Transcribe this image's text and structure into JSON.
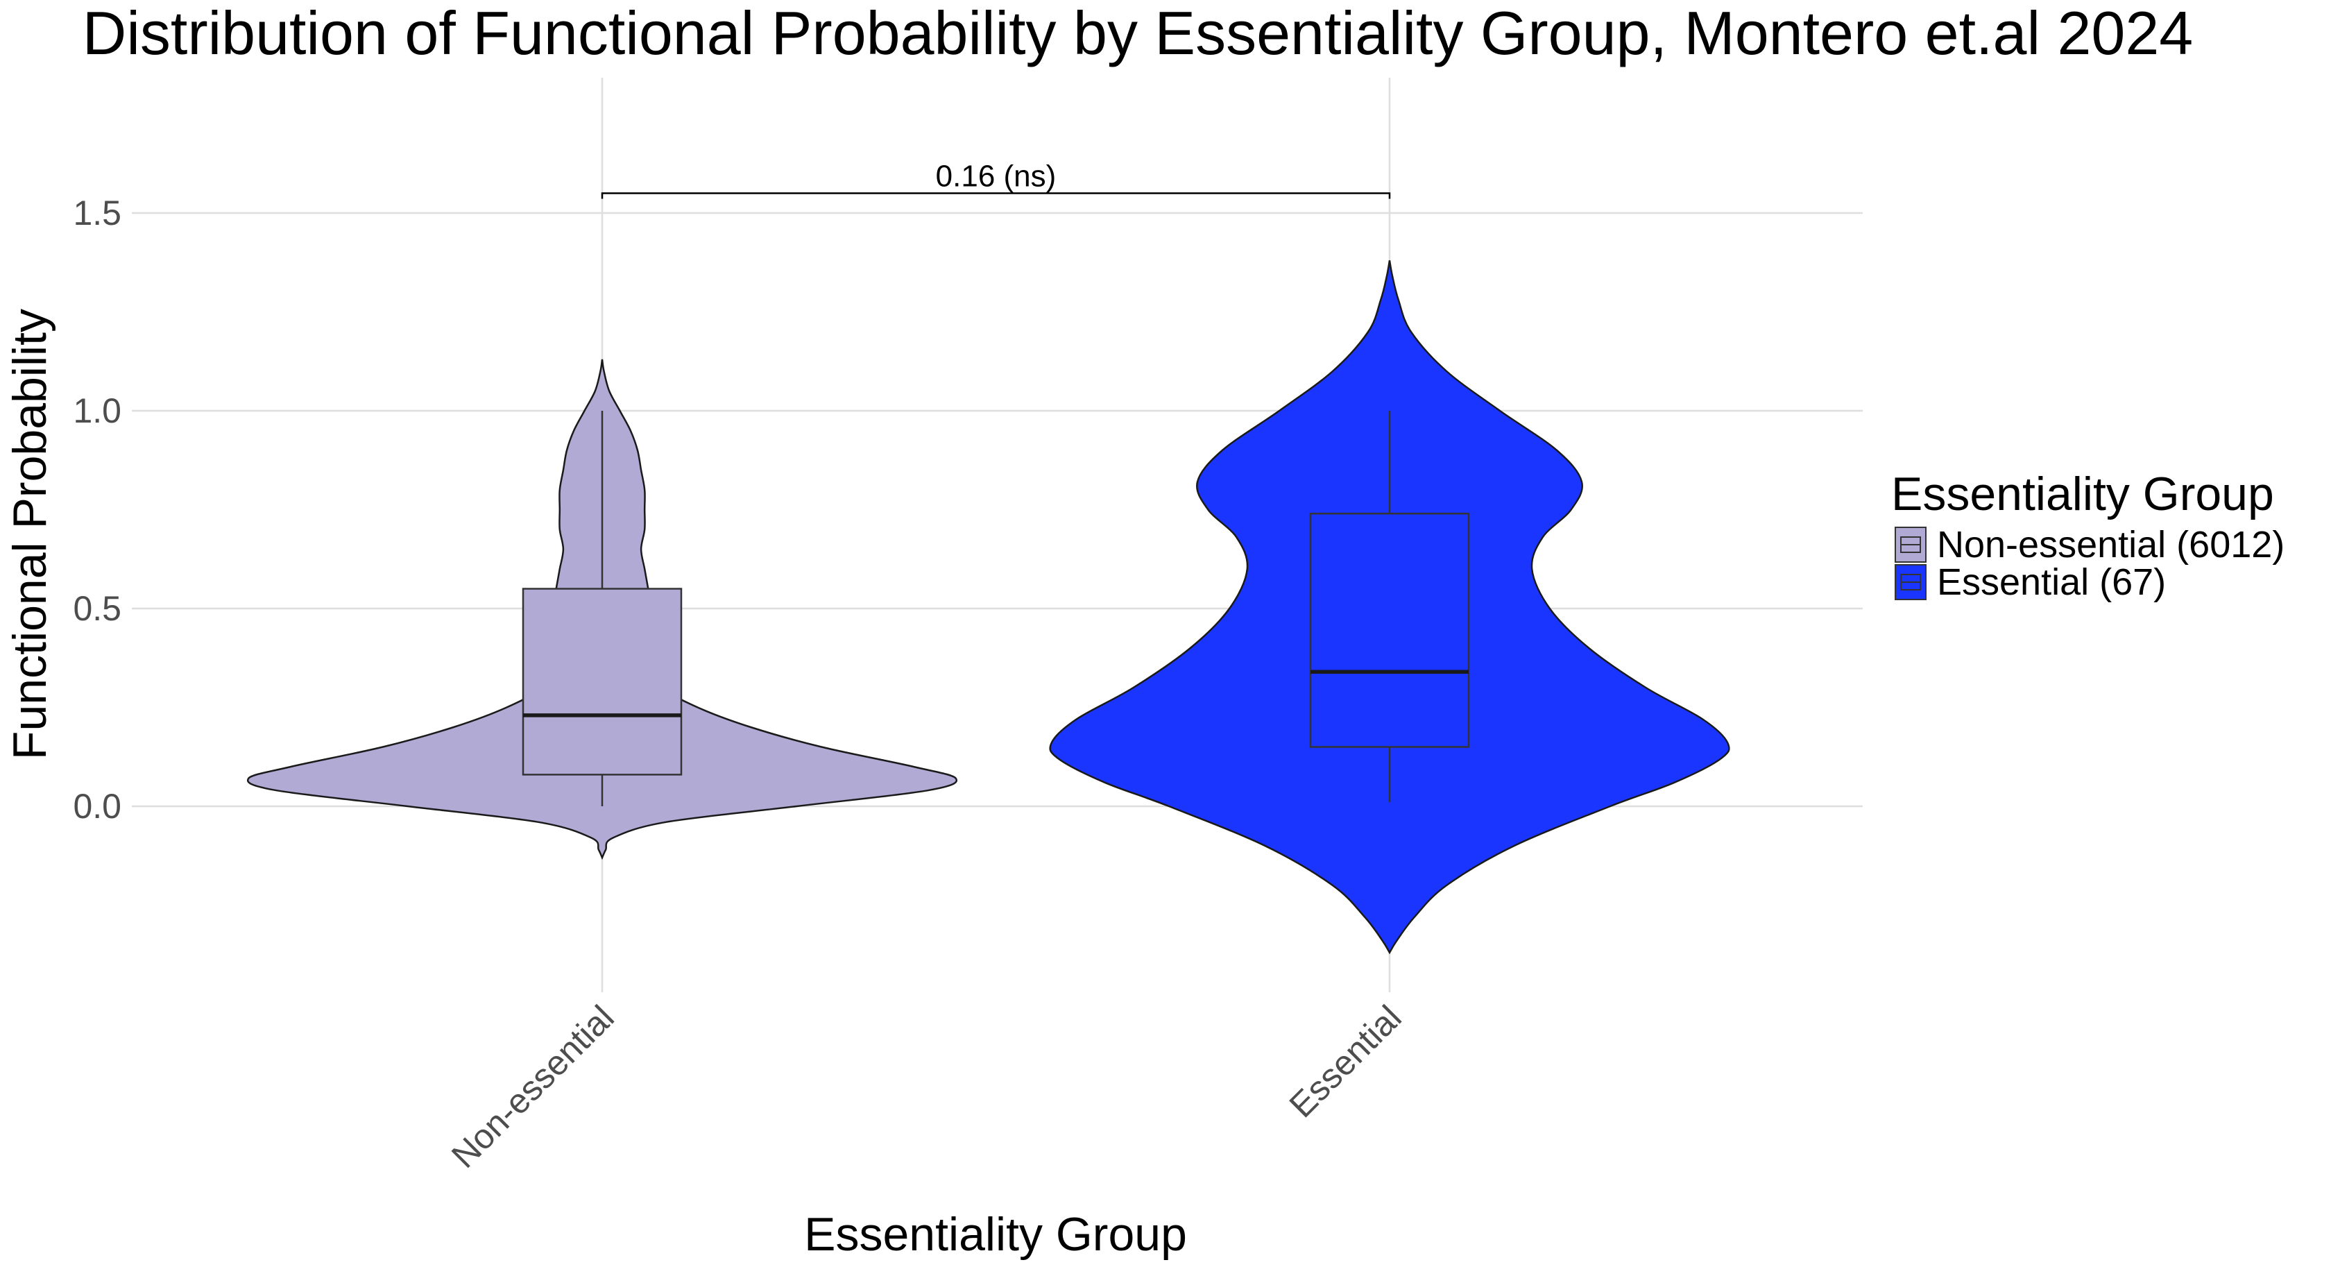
{
  "chart_data": {
    "type": "violin",
    "title": "Distribution of Functional Probability by Essentiality Group, Montero et.al 2024",
    "xlabel": "Essentiality Group",
    "ylabel": "Functional Probability",
    "categories": [
      "Non-essential",
      "Essential"
    ],
    "y_ticks": [
      "0.0",
      "0.5",
      "1.0",
      "1.5"
    ],
    "ylim": [
      -0.4,
      1.85
    ],
    "grid": true,
    "legend": {
      "title": "Essentiality Group",
      "position": "right",
      "items": [
        "Non-essential (6012)",
        "Essential (67)"
      ]
    },
    "series": [
      {
        "category": "Non-essential",
        "color": "#b0aad4",
        "box": {
          "min": 0.0,
          "q1": 0.08,
          "median": 0.23,
          "q3": 0.55,
          "max": 1.0
        },
        "violin_range": [
          -0.13,
          1.13
        ],
        "density_profile": [
          [
            -0.13,
            0.0
          ],
          [
            -0.11,
            0.01
          ],
          [
            -0.08,
            0.03
          ],
          [
            -0.04,
            0.18
          ],
          [
            0.0,
            0.55
          ],
          [
            0.04,
            0.92
          ],
          [
            0.07,
            1.0
          ],
          [
            0.1,
            0.88
          ],
          [
            0.15,
            0.62
          ],
          [
            0.2,
            0.42
          ],
          [
            0.25,
            0.27
          ],
          [
            0.3,
            0.17
          ],
          [
            0.35,
            0.15
          ],
          [
            0.4,
            0.15
          ],
          [
            0.45,
            0.14
          ],
          [
            0.5,
            0.14
          ],
          [
            0.55,
            0.13
          ],
          [
            0.6,
            0.12
          ],
          [
            0.65,
            0.11
          ],
          [
            0.7,
            0.12
          ],
          [
            0.75,
            0.12
          ],
          [
            0.8,
            0.12
          ],
          [
            0.85,
            0.11
          ],
          [
            0.9,
            0.1
          ],
          [
            0.95,
            0.08
          ],
          [
            1.0,
            0.05
          ],
          [
            1.05,
            0.02
          ],
          [
            1.1,
            0.005
          ],
          [
            1.13,
            0.0
          ]
        ]
      },
      {
        "category": "Essential",
        "color": "#1a35ff",
        "box": {
          "min": 0.01,
          "q1": 0.15,
          "median": 0.34,
          "q3": 0.74,
          "max": 1.0
        },
        "violin_range": [
          -0.37,
          1.38
        ],
        "density_profile": [
          [
            -0.37,
            0.0
          ],
          [
            -0.34,
            0.02
          ],
          [
            -0.28,
            0.07
          ],
          [
            -0.2,
            0.16
          ],
          [
            -0.1,
            0.35
          ],
          [
            0.0,
            0.62
          ],
          [
            0.06,
            0.8
          ],
          [
            0.12,
            0.93
          ],
          [
            0.16,
            0.95
          ],
          [
            0.22,
            0.88
          ],
          [
            0.3,
            0.72
          ],
          [
            0.4,
            0.56
          ],
          [
            0.5,
            0.45
          ],
          [
            0.6,
            0.4
          ],
          [
            0.68,
            0.43
          ],
          [
            0.75,
            0.51
          ],
          [
            0.82,
            0.54
          ],
          [
            0.9,
            0.47
          ],
          [
            1.0,
            0.31
          ],
          [
            1.1,
            0.16
          ],
          [
            1.2,
            0.06
          ],
          [
            1.28,
            0.025
          ],
          [
            1.34,
            0.008
          ],
          [
            1.38,
            0.0
          ]
        ]
      }
    ],
    "annotation": {
      "text": "0.16 (ns)",
      "y": 1.55,
      "from": "Non-essential",
      "to": "Essential"
    }
  }
}
